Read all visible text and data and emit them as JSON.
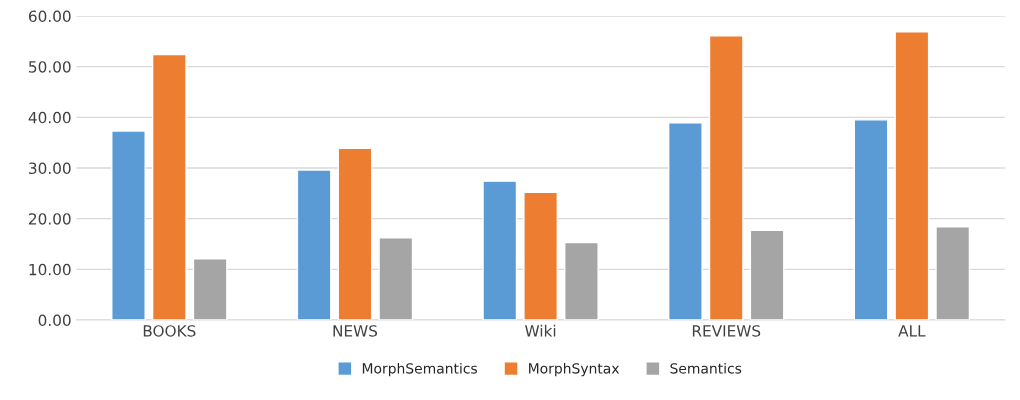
{
  "chart_data": {
    "type": "bar",
    "categories": [
      "BOOKS",
      "NEWS",
      "Wiki",
      "REVIEWS",
      "ALL"
    ],
    "series": [
      {
        "name": "MorphSemantics",
        "color": "#5b9bd5",
        "values": [
          37.3,
          29.6,
          27.4,
          38.9,
          39.5
        ]
      },
      {
        "name": "MorphSyntax",
        "color": "#ed7d31",
        "values": [
          52.4,
          33.9,
          25.2,
          56.1,
          56.9
        ]
      },
      {
        "name": "Semantics",
        "color": "#a5a5a5",
        "values": [
          12.1,
          16.2,
          15.3,
          17.7,
          18.4
        ]
      }
    ],
    "ylim": [
      0,
      60
    ],
    "yticks": [
      {
        "value": 0,
        "label": "0.00"
      },
      {
        "value": 10,
        "label": "10.00"
      },
      {
        "value": 20,
        "label": "20.00"
      },
      {
        "value": 30,
        "label": "30.00"
      },
      {
        "value": 40,
        "label": "40.00"
      },
      {
        "value": 50,
        "label": "50.00"
      },
      {
        "value": 60,
        "label": "60.00"
      }
    ],
    "grid": "y",
    "legend": "bottom"
  }
}
